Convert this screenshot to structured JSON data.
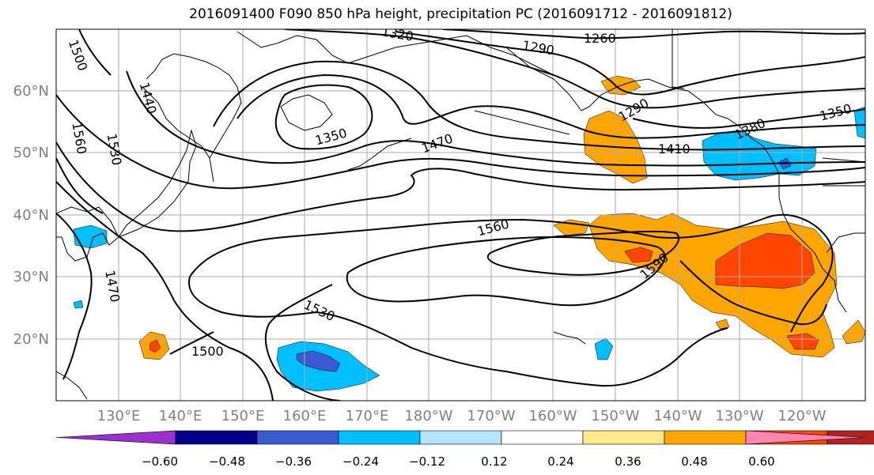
{
  "title": "2016091400 F090 850 hPa height, precipitation PC (2016091712 - 2016091812)",
  "lat_labels": [
    "60°N",
    "50°N",
    "40°N",
    "30°N",
    "20°N"
  ],
  "lon_labels": [
    "130°E",
    "140°E",
    "150°E",
    "160°E",
    "170°E",
    "180°W",
    "170°W",
    "160°W",
    "150°W",
    "140°W",
    "130°W",
    "120°W"
  ],
  "contour_labels": [
    "1260",
    "1290",
    "1290",
    "1320",
    "1350",
    "1350",
    "1380",
    "1410",
    "1440",
    "1470",
    "1470",
    "1500",
    "1500",
    "1530",
    "1530",
    "1560",
    "1560",
    "1590"
  ],
  "colorbar": {
    "tick_labels": [
      "−0.60",
      "−0.48",
      "−0.36",
      "−0.24",
      "−0.12",
      "0.12",
      "0.24",
      "0.36",
      "0.48",
      "0.60"
    ],
    "colors": [
      "#9b30d0",
      "#00008b",
      "#3a5bcf",
      "#00bfff",
      "#b3e5ff",
      "#ffffff",
      "#ffe98a",
      "#ffa500",
      "#ff4500",
      "#b22222",
      "#ff85b0"
    ]
  }
}
